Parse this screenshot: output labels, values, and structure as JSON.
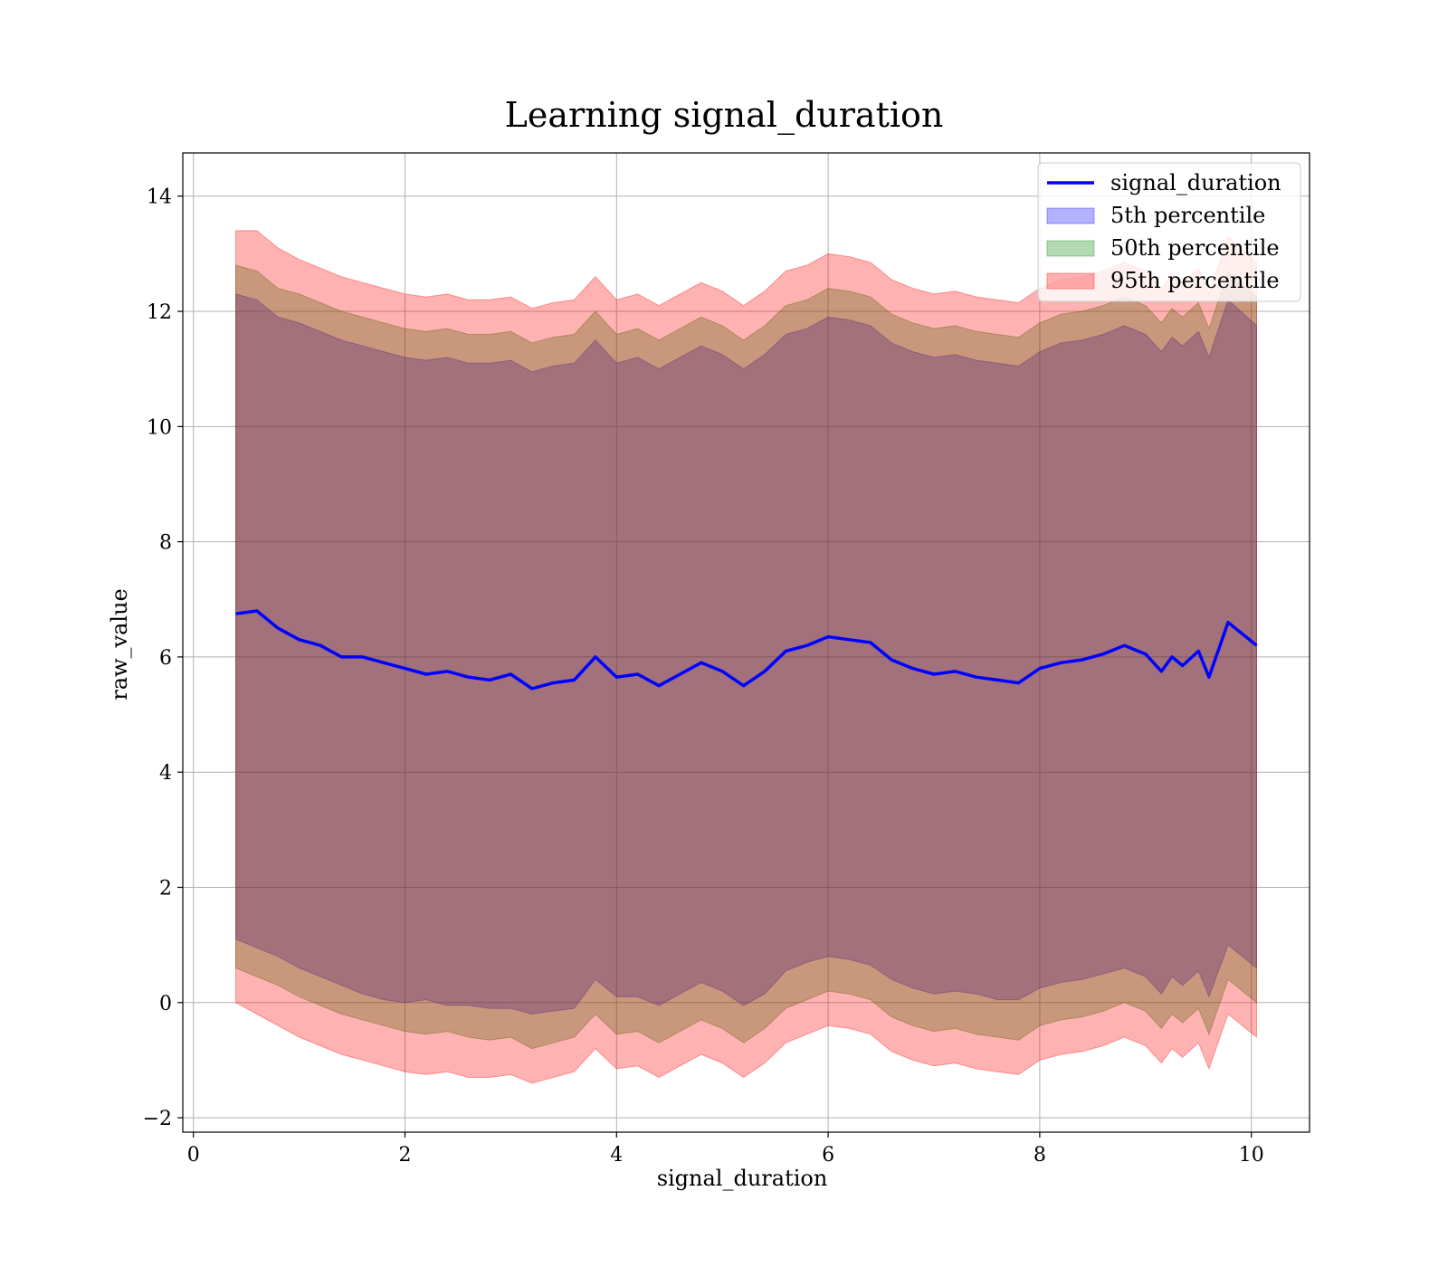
{
  "chart_data": {
    "type": "area",
    "title": "Learning signal_duration",
    "xlabel": "signal_duration",
    "ylabel": "raw_value",
    "xlim": [
      -0.1,
      10.55
    ],
    "ylim": [
      -2.25,
      14.75
    ],
    "xticks": [
      0,
      2,
      4,
      6,
      8,
      10
    ],
    "yticks": [
      -2,
      0,
      2,
      4,
      6,
      8,
      10,
      12,
      14
    ],
    "xtick_labels": [
      "0",
      "2",
      "4",
      "6",
      "8",
      "10"
    ],
    "ytick_labels": [
      "−2",
      "0",
      "2",
      "4",
      "6",
      "8",
      "10",
      "12",
      "14"
    ],
    "grid": true,
    "legend_position": "top-right",
    "x": [
      0.4,
      0.6,
      0.8,
      1.0,
      1.2,
      1.4,
      1.6,
      1.8,
      2.0,
      2.2,
      2.4,
      2.6,
      2.8,
      3.0,
      3.2,
      3.4,
      3.6,
      3.8,
      4.0,
      4.2,
      4.4,
      4.6,
      4.8,
      5.0,
      5.2,
      5.4,
      5.6,
      5.8,
      6.0,
      6.2,
      6.4,
      6.6,
      6.8,
      7.0,
      7.2,
      7.4,
      7.6,
      7.8,
      8.0,
      8.2,
      8.4,
      8.6,
      8.8,
      9.0,
      9.15,
      9.25,
      9.35,
      9.5,
      9.6,
      9.78,
      10.05
    ],
    "series": [
      {
        "name": "signal_duration",
        "kind": "line",
        "color": "#0000ff",
        "values": [
          6.75,
          6.8,
          6.5,
          6.3,
          6.2,
          6.0,
          6.0,
          5.9,
          5.8,
          5.7,
          5.75,
          5.65,
          5.6,
          5.7,
          5.45,
          5.55,
          5.6,
          6.0,
          5.65,
          5.7,
          5.5,
          5.7,
          5.9,
          5.75,
          5.5,
          5.75,
          6.1,
          6.2,
          6.35,
          6.3,
          6.25,
          5.95,
          5.8,
          5.7,
          5.75,
          5.65,
          5.6,
          5.55,
          5.8,
          5.9,
          5.95,
          6.05,
          6.2,
          6.05,
          5.75,
          6.0,
          5.85,
          6.1,
          5.65,
          6.6,
          6.2
        ]
      },
      {
        "name": "5th percentile",
        "kind": "band",
        "color": "#0000ff",
        "lower": [
          1.1,
          0.95,
          0.8,
          0.6,
          0.45,
          0.3,
          0.15,
          0.05,
          0.0,
          0.05,
          -0.05,
          -0.05,
          -0.1,
          -0.1,
          -0.2,
          -0.15,
          -0.1,
          0.4,
          0.1,
          0.1,
          -0.05,
          0.15,
          0.35,
          0.2,
          -0.05,
          0.15,
          0.55,
          0.7,
          0.8,
          0.75,
          0.65,
          0.4,
          0.25,
          0.15,
          0.2,
          0.15,
          0.05,
          0.05,
          0.25,
          0.35,
          0.4,
          0.5,
          0.6,
          0.45,
          0.15,
          0.45,
          0.3,
          0.55,
          0.1,
          1.0,
          0.6
        ],
        "upper": [
          12.3,
          12.2,
          11.9,
          11.8,
          11.65,
          11.5,
          11.4,
          11.3,
          11.2,
          11.15,
          11.2,
          11.1,
          11.1,
          11.15,
          10.95,
          11.05,
          11.1,
          11.5,
          11.1,
          11.2,
          11.0,
          11.2,
          11.4,
          11.25,
          11.0,
          11.25,
          11.6,
          11.7,
          11.9,
          11.85,
          11.75,
          11.45,
          11.3,
          11.2,
          11.25,
          11.15,
          11.1,
          11.05,
          11.3,
          11.45,
          11.5,
          11.6,
          11.75,
          11.6,
          11.3,
          11.55,
          11.4,
          11.65,
          11.2,
          12.2,
          11.75
        ]
      },
      {
        "name": "50th percentile",
        "kind": "band",
        "color": "#008000",
        "lower": [
          0.6,
          0.45,
          0.3,
          0.1,
          -0.05,
          -0.2,
          -0.3,
          -0.4,
          -0.5,
          -0.55,
          -0.5,
          -0.6,
          -0.65,
          -0.6,
          -0.8,
          -0.7,
          -0.6,
          -0.2,
          -0.55,
          -0.5,
          -0.7,
          -0.5,
          -0.3,
          -0.45,
          -0.7,
          -0.45,
          -0.1,
          0.05,
          0.2,
          0.15,
          0.05,
          -0.25,
          -0.4,
          -0.5,
          -0.45,
          -0.55,
          -0.6,
          -0.65,
          -0.4,
          -0.3,
          -0.25,
          -0.15,
          0.0,
          -0.15,
          -0.45,
          -0.2,
          -0.35,
          -0.1,
          -0.55,
          0.4,
          0.0
        ],
        "upper": [
          12.8,
          12.7,
          12.4,
          12.3,
          12.15,
          12.0,
          11.9,
          11.8,
          11.7,
          11.65,
          11.7,
          11.6,
          11.6,
          11.65,
          11.45,
          11.55,
          11.6,
          12.0,
          11.6,
          11.7,
          11.5,
          11.7,
          11.9,
          11.75,
          11.5,
          11.75,
          12.1,
          12.2,
          12.4,
          12.35,
          12.25,
          11.95,
          11.8,
          11.7,
          11.75,
          11.65,
          11.6,
          11.55,
          11.8,
          11.95,
          12.0,
          12.1,
          12.25,
          12.1,
          11.8,
          12.05,
          11.9,
          12.15,
          11.7,
          12.7,
          12.25
        ]
      },
      {
        "name": "95th percentile",
        "kind": "band",
        "color": "#ff0000",
        "lower": [
          0.0,
          -0.2,
          -0.4,
          -0.6,
          -0.75,
          -0.9,
          -1.0,
          -1.1,
          -1.2,
          -1.25,
          -1.2,
          -1.3,
          -1.3,
          -1.25,
          -1.4,
          -1.3,
          -1.2,
          -0.8,
          -1.15,
          -1.1,
          -1.3,
          -1.1,
          -0.9,
          -1.05,
          -1.3,
          -1.05,
          -0.7,
          -0.55,
          -0.4,
          -0.45,
          -0.55,
          -0.85,
          -1.0,
          -1.1,
          -1.05,
          -1.15,
          -1.2,
          -1.25,
          -1.0,
          -0.9,
          -0.85,
          -0.75,
          -0.6,
          -0.75,
          -1.05,
          -0.8,
          -0.95,
          -0.7,
          -1.15,
          -0.2,
          -0.6
        ],
        "upper": [
          13.4,
          13.4,
          13.1,
          12.9,
          12.75,
          12.6,
          12.5,
          12.4,
          12.3,
          12.25,
          12.3,
          12.2,
          12.2,
          12.25,
          12.05,
          12.15,
          12.2,
          12.6,
          12.2,
          12.3,
          12.1,
          12.3,
          12.5,
          12.35,
          12.1,
          12.35,
          12.7,
          12.8,
          13.0,
          12.95,
          12.85,
          12.55,
          12.4,
          12.3,
          12.35,
          12.25,
          12.2,
          12.15,
          12.4,
          12.55,
          12.6,
          12.7,
          12.85,
          12.7,
          12.4,
          12.65,
          12.5,
          12.75,
          12.3,
          13.3,
          12.85
        ]
      }
    ]
  }
}
